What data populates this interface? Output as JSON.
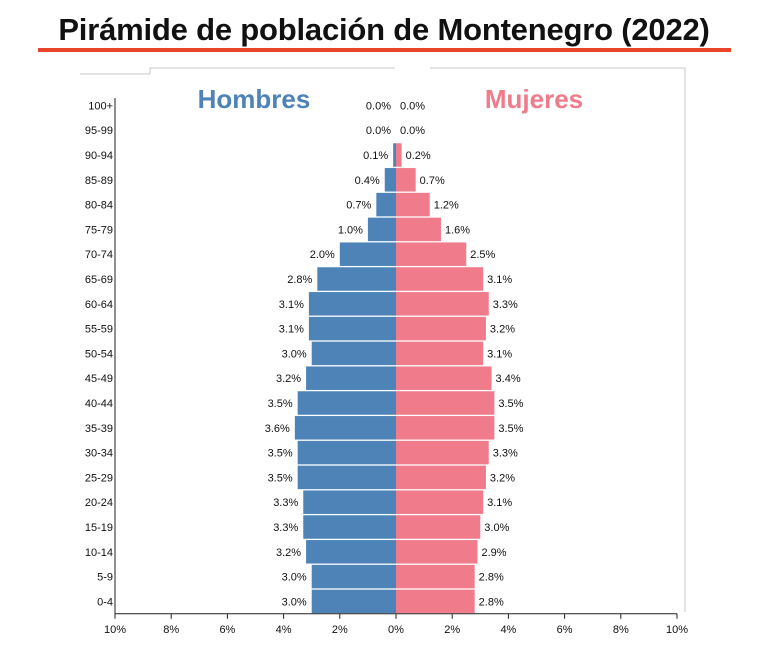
{
  "title": "Pirámide de población de Montenegro (2022)",
  "colors": {
    "male": "#4d83b7",
    "female": "#ef7b8b",
    "title_underline": "#e8442a"
  },
  "chart_data": {
    "type": "bar",
    "orientation": "horizontal",
    "layout": "population-pyramid",
    "categories": [
      "100+",
      "95-99",
      "90-94",
      "85-89",
      "80-84",
      "75-79",
      "70-74",
      "65-69",
      "60-64",
      "55-59",
      "50-54",
      "45-49",
      "40-44",
      "35-39",
      "30-34",
      "25-29",
      "20-24",
      "15-19",
      "10-14",
      "5-9",
      "0-4"
    ],
    "series": [
      {
        "name": "Hombres",
        "side": "left",
        "color": "#4d83b7",
        "values": [
          0.0,
          0.0,
          0.1,
          0.4,
          0.7,
          1.0,
          2.0,
          2.8,
          3.1,
          3.1,
          3.0,
          3.2,
          3.5,
          3.6,
          3.5,
          3.5,
          3.3,
          3.3,
          3.2,
          3.0,
          3.0
        ]
      },
      {
        "name": "Mujeres",
        "side": "right",
        "color": "#ef7b8b",
        "values": [
          0.0,
          0.0,
          0.2,
          0.7,
          1.2,
          1.6,
          2.5,
          3.1,
          3.3,
          3.2,
          3.1,
          3.4,
          3.5,
          3.5,
          3.3,
          3.2,
          3.1,
          3.0,
          2.9,
          2.8,
          2.8
        ]
      }
    ],
    "xlim": [
      -10,
      10
    ],
    "x_ticks": [
      "10%",
      "8%",
      "6%",
      "4%",
      "2%",
      "0%",
      "2%",
      "4%",
      "6%",
      "8%",
      "10%"
    ],
    "value_format": "%",
    "grid": false,
    "legend": "top-center, series names printed above each side"
  }
}
